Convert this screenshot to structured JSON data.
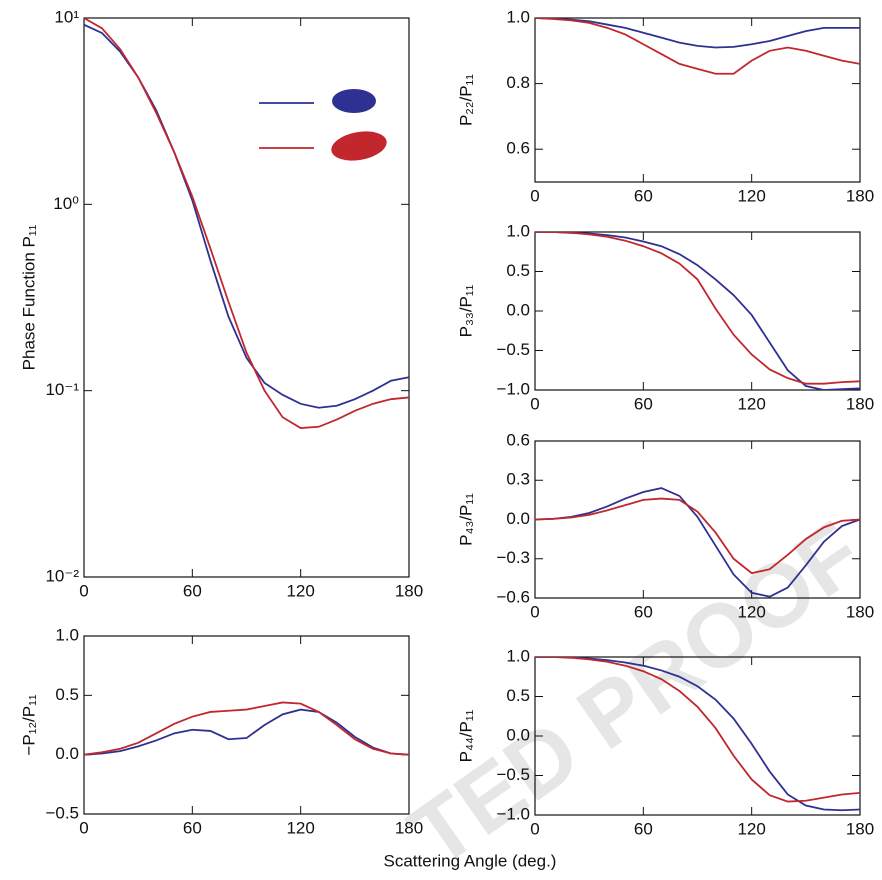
{
  "watermark": "TED PROOF",
  "x_label": "Scattering Angle (deg.)",
  "chart_data": [
    {
      "type": "line",
      "ylabel": "Phase Function P₁₁",
      "log_y": true,
      "legend": "upper right",
      "x": [
        0,
        10,
        20,
        30,
        40,
        50,
        60,
        70,
        80,
        90,
        100,
        110,
        120,
        130,
        140,
        150,
        160,
        170,
        180
      ],
      "xlim": [
        0,
        180
      ],
      "xticks": [
        0,
        60,
        120,
        180
      ],
      "ylim": [
        0.01,
        10
      ],
      "yticks": [
        {
          "value": 0.01,
          "label": "10⁻²"
        },
        {
          "value": 0.1,
          "label": "10⁻¹"
        },
        {
          "value": 1,
          "label": "10⁰"
        },
        {
          "value": 10,
          "label": "10¹"
        }
      ],
      "series": [
        {
          "color": "#2e3192",
          "values": [
            9.2,
            8.3,
            6.6,
            4.8,
            3.2,
            1.9,
            1.05,
            0.5,
            0.25,
            0.15,
            0.11,
            0.095,
            0.085,
            0.081,
            0.083,
            0.09,
            0.1,
            0.113,
            0.118
          ]
        },
        {
          "color": "#c1272d",
          "values": [
            10,
            8.8,
            6.8,
            4.8,
            3.1,
            1.9,
            1.1,
            0.58,
            0.3,
            0.16,
            0.1,
            0.072,
            0.063,
            0.064,
            0.07,
            0.078,
            0.085,
            0.09,
            0.092
          ]
        }
      ]
    },
    {
      "type": "line",
      "ylabel": "−P₁₂/P₁₁",
      "x": [
        0,
        10,
        20,
        30,
        40,
        50,
        60,
        70,
        80,
        90,
        100,
        110,
        120,
        130,
        140,
        150,
        160,
        170,
        180
      ],
      "xlim": [
        0,
        180
      ],
      "xticks": [
        0,
        60,
        120,
        180
      ],
      "ylim": [
        -0.5,
        1.0
      ],
      "yticks": [
        {
          "value": -0.5,
          "label": "−0.5"
        },
        {
          "value": 0,
          "label": "0.0"
        },
        0.5,
        {
          "value": 1,
          "label": "1.0"
        }
      ],
      "series": [
        {
          "color": "#2e3192",
          "values": [
            0,
            0.01,
            0.03,
            0.07,
            0.12,
            0.18,
            0.21,
            0.2,
            0.13,
            0.14,
            0.25,
            0.34,
            0.38,
            0.36,
            0.27,
            0.15,
            0.06,
            0.01,
            0
          ]
        },
        {
          "color": "#c1272d",
          "values": [
            0,
            0.02,
            0.05,
            0.1,
            0.18,
            0.26,
            0.32,
            0.36,
            0.37,
            0.38,
            0.41,
            0.44,
            0.43,
            0.36,
            0.25,
            0.13,
            0.05,
            0.01,
            0
          ]
        }
      ]
    },
    {
      "type": "line",
      "ylabel": "P₂₂/P₁₁",
      "x": [
        0,
        10,
        20,
        30,
        40,
        50,
        60,
        70,
        80,
        90,
        100,
        110,
        120,
        130,
        140,
        150,
        160,
        170,
        180
      ],
      "xlim": [
        0,
        180
      ],
      "xticks": [
        0,
        60,
        120,
        180
      ],
      "ylim": [
        0.5,
        1.0
      ],
      "yticks": [
        0.6,
        0.8,
        {
          "value": 1,
          "label": "1.0"
        }
      ],
      "series": [
        {
          "color": "#2e3192",
          "values": [
            1,
            0.998,
            0.995,
            0.99,
            0.98,
            0.97,
            0.955,
            0.94,
            0.925,
            0.915,
            0.91,
            0.912,
            0.92,
            0.93,
            0.945,
            0.96,
            0.97,
            0.97,
            0.97
          ]
        },
        {
          "color": "#c1272d",
          "values": [
            1,
            0.997,
            0.993,
            0.985,
            0.97,
            0.95,
            0.92,
            0.89,
            0.86,
            0.845,
            0.83,
            0.83,
            0.87,
            0.9,
            0.91,
            0.9,
            0.885,
            0.87,
            0.86
          ]
        }
      ]
    },
    {
      "type": "line",
      "ylabel": "P₃₃/P₁₁",
      "x": [
        0,
        10,
        20,
        30,
        40,
        50,
        60,
        70,
        80,
        90,
        100,
        110,
        120,
        130,
        140,
        150,
        160,
        170,
        180
      ],
      "xlim": [
        0,
        180
      ],
      "xticks": [
        0,
        60,
        120,
        180
      ],
      "ylim": [
        -1,
        1
      ],
      "yticks": [
        {
          "value": -1,
          "label": "−1.0"
        },
        {
          "value": -0.5,
          "label": "−0.5"
        },
        {
          "value": 0,
          "label": "0.0"
        },
        0.5,
        {
          "value": 1,
          "label": "1.0"
        }
      ],
      "series": [
        {
          "color": "#2e3192",
          "values": [
            1,
            1,
            0.99,
            0.98,
            0.96,
            0.93,
            0.88,
            0.82,
            0.72,
            0.58,
            0.4,
            0.2,
            -0.05,
            -0.4,
            -0.75,
            -0.95,
            -1.0,
            -0.99,
            -0.98
          ]
        },
        {
          "color": "#c1272d",
          "values": [
            1,
            1,
            0.99,
            0.97,
            0.94,
            0.89,
            0.82,
            0.73,
            0.6,
            0.4,
            0.03,
            -0.3,
            -0.55,
            -0.74,
            -0.85,
            -0.92,
            -0.92,
            -0.9,
            -0.89
          ]
        }
      ]
    },
    {
      "type": "line",
      "ylabel": "P₄₃/P₁₁",
      "x": [
        0,
        10,
        20,
        30,
        40,
        50,
        60,
        70,
        80,
        90,
        100,
        110,
        120,
        130,
        140,
        150,
        160,
        170,
        180
      ],
      "xlim": [
        0,
        180
      ],
      "xticks": [
        0,
        60,
        120,
        180
      ],
      "ylim": [
        -0.6,
        0.6
      ],
      "yticks": [
        {
          "value": -0.6,
          "label": "−0.6"
        },
        {
          "value": -0.3,
          "label": "−0.3"
        },
        {
          "value": 0,
          "label": "0.0"
        },
        0.3,
        0.6
      ],
      "series": [
        {
          "color": "#2e3192",
          "values": [
            0,
            0.005,
            0.02,
            0.05,
            0.1,
            0.16,
            0.21,
            0.24,
            0.18,
            0.02,
            -0.2,
            -0.42,
            -0.56,
            -0.59,
            -0.52,
            -0.35,
            -0.17,
            -0.05,
            0
          ]
        },
        {
          "color": "#c1272d",
          "values": [
            0,
            0.005,
            0.015,
            0.035,
            0.07,
            0.11,
            0.15,
            0.16,
            0.15,
            0.06,
            -0.1,
            -0.3,
            -0.41,
            -0.38,
            -0.27,
            -0.15,
            -0.06,
            -0.01,
            0
          ]
        }
      ]
    },
    {
      "type": "line",
      "ylabel": "P₄₄/P₁₁",
      "x": [
        0,
        10,
        20,
        30,
        40,
        50,
        60,
        70,
        80,
        90,
        100,
        110,
        120,
        130,
        140,
        150,
        160,
        170,
        180
      ],
      "xlim": [
        0,
        180
      ],
      "xticks": [
        0,
        60,
        120,
        180
      ],
      "ylim": [
        -1,
        1
      ],
      "yticks": [
        {
          "value": -1,
          "label": "−1.0"
        },
        {
          "value": -0.5,
          "label": "−0.5"
        },
        {
          "value": 0,
          "label": "0.0"
        },
        0.5,
        {
          "value": 1,
          "label": "1.0"
        }
      ],
      "series": [
        {
          "color": "#2e3192",
          "values": [
            1,
            1,
            0.995,
            0.98,
            0.96,
            0.93,
            0.89,
            0.83,
            0.75,
            0.63,
            0.46,
            0.22,
            -0.1,
            -0.45,
            -0.74,
            -0.88,
            -0.93,
            -0.94,
            -0.93
          ]
        },
        {
          "color": "#c1272d",
          "values": [
            1,
            1,
            0.99,
            0.97,
            0.94,
            0.89,
            0.82,
            0.72,
            0.57,
            0.37,
            0.1,
            -0.25,
            -0.55,
            -0.75,
            -0.83,
            -0.82,
            -0.78,
            -0.74,
            -0.72
          ]
        }
      ]
    }
  ]
}
